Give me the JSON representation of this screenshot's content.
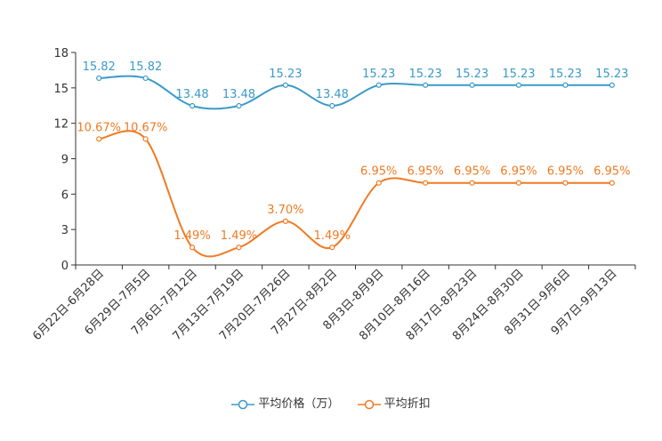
{
  "chart_data": {
    "type": "line",
    "title": "",
    "xlabel": "",
    "ylabel": "",
    "ylim": [
      0,
      18
    ],
    "yticks": [
      0,
      3,
      6,
      9,
      12,
      15,
      18
    ],
    "grid": false,
    "legend_position": "bottom",
    "categories": [
      "6月22日-6月28日",
      "6月29日-7月5日",
      "7月6日-7月12日",
      "7月13日-7月19日",
      "7月20日-7月26日",
      "7月27日-8月2日",
      "8月3日-8月9日",
      "8月10日-8月16日",
      "8月17日-8月23日",
      "8月24日-8月30日",
      "8月31日-9月6日",
      "9月7日-9月13日"
    ],
    "series": [
      {
        "name": "平均价格（万）",
        "color": "#3a9ac9",
        "values": [
          15.82,
          15.82,
          13.48,
          13.48,
          15.23,
          13.48,
          15.23,
          15.23,
          15.23,
          15.23,
          15.23,
          15.23
        ],
        "labels": [
          "15.82",
          "15.82",
          "13.48",
          "13.48",
          "15.23",
          "13.48",
          "15.23",
          "15.23",
          "15.23",
          "15.23",
          "15.23",
          "15.23"
        ]
      },
      {
        "name": "平均折扣",
        "color": "#f07a22",
        "values": [
          10.67,
          10.67,
          1.49,
          1.49,
          3.7,
          1.49,
          6.95,
          6.95,
          6.95,
          6.95,
          6.95,
          6.95
        ],
        "labels": [
          "10.67%",
          "10.67%",
          "1.49%",
          "1.49%",
          "3.70%",
          "1.49%",
          "6.95%",
          "6.95%",
          "6.95%",
          "6.95%",
          "6.95%",
          "6.95%"
        ]
      }
    ]
  }
}
